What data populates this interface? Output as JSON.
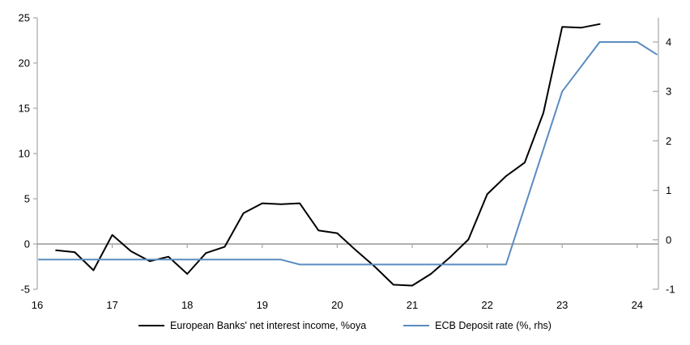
{
  "chart_data": {
    "type": "line",
    "title": "",
    "grid": "off",
    "legend_position": "bottom",
    "x_axis": {
      "ticks": [
        16,
        17,
        18,
        19,
        20,
        21,
        22,
        23,
        24
      ],
      "range": [
        16,
        24.28
      ]
    },
    "left_axis": {
      "ticks": [
        -5,
        0,
        5,
        10,
        15,
        20,
        25
      ],
      "range": [
        -5,
        25
      ]
    },
    "right_axis": {
      "ticks": [
        -1,
        0,
        1,
        2,
        3,
        4
      ],
      "range": [
        -1,
        4
      ]
    },
    "axis_color": "#a6a6a6",
    "zero_line_color": "#a6a6a6",
    "text_color": "#000000",
    "series": [
      {
        "name": "European Banks' net interest income, %oya",
        "axis": "left",
        "color": "#000000",
        "width": 2,
        "points": [
          [
            16.25,
            -0.7
          ],
          [
            16.5,
            -0.9
          ],
          [
            16.75,
            -2.9
          ],
          [
            17.0,
            1.0
          ],
          [
            17.25,
            -0.8
          ],
          [
            17.5,
            -1.9
          ],
          [
            17.75,
            -1.4
          ],
          [
            18.0,
            -3.3
          ],
          [
            18.25,
            -1.0
          ],
          [
            18.5,
            -0.3
          ],
          [
            18.75,
            3.4
          ],
          [
            19.0,
            4.5
          ],
          [
            19.25,
            4.4
          ],
          [
            19.5,
            4.5
          ],
          [
            19.75,
            1.5
          ],
          [
            20.0,
            1.2
          ],
          [
            20.25,
            -0.7
          ],
          [
            20.5,
            -2.5
          ],
          [
            20.75,
            -4.5
          ],
          [
            21.0,
            -4.6
          ],
          [
            21.25,
            -3.3
          ],
          [
            21.5,
            -1.5
          ],
          [
            21.75,
            0.5
          ],
          [
            22.0,
            5.5
          ],
          [
            22.25,
            7.5
          ],
          [
            22.5,
            9.0
          ],
          [
            22.75,
            14.5
          ],
          [
            23.0,
            24.0
          ],
          [
            23.25,
            23.9
          ],
          [
            23.5,
            24.3
          ]
        ]
      },
      {
        "name": "ECB Deposit rate (%, rhs)",
        "axis": "right",
        "color": "#5b8cc0",
        "width": 2,
        "points": [
          [
            16.02,
            -0.4
          ],
          [
            19.25,
            -0.4
          ],
          [
            19.5,
            -0.5
          ],
          [
            22.25,
            -0.5
          ],
          [
            23.0,
            3.0
          ],
          [
            23.5,
            4.0
          ],
          [
            24.0,
            4.0
          ],
          [
            24.26,
            3.75
          ]
        ]
      }
    ]
  }
}
